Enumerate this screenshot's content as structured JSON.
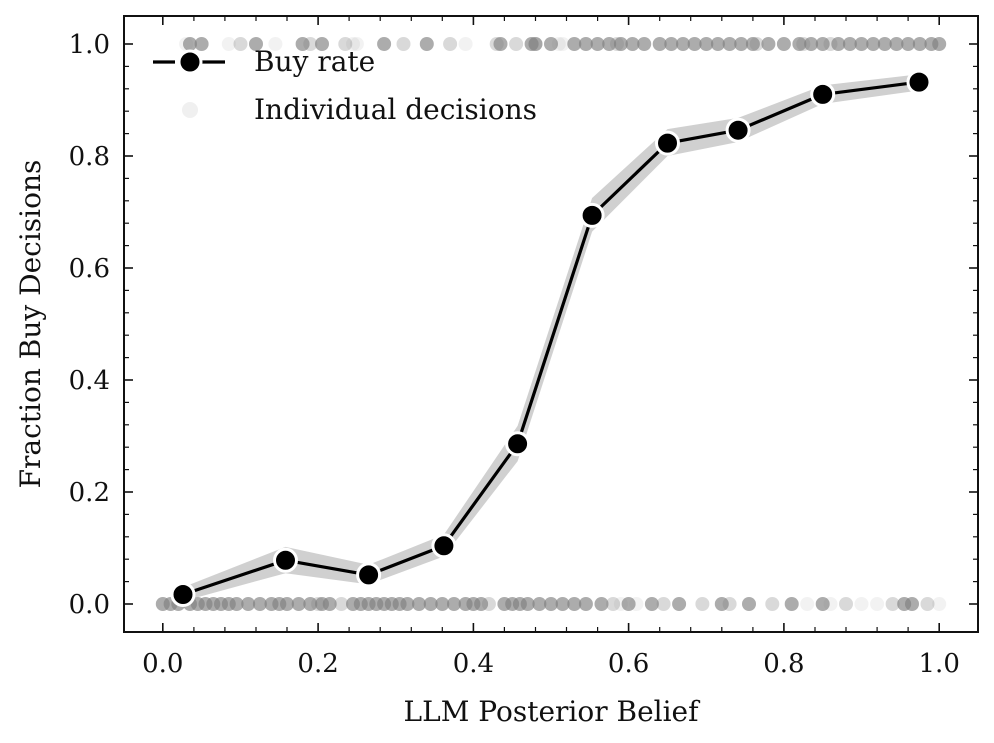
{
  "chart_data": {
    "type": "line",
    "title": "",
    "xlabel": "LLM Posterior Belief",
    "ylabel": "Fraction Buy Decisions",
    "xlim": [
      -0.05,
      1.05
    ],
    "ylim": [
      -0.05,
      1.05
    ],
    "xticks": [
      0.0,
      0.2,
      0.4,
      0.6,
      0.8,
      1.0
    ],
    "xtick_labels": [
      "0.0",
      "0.2",
      "0.4",
      "0.6",
      "0.8",
      "1.0"
    ],
    "yticks": [
      0.0,
      0.2,
      0.4,
      0.6,
      0.8,
      1.0
    ],
    "ytick_labels": [
      "0.0",
      "0.2",
      "0.4",
      "0.6",
      "0.8",
      "1.0"
    ],
    "legend": {
      "position": "upper-left",
      "entries": [
        "Buy rate",
        "Individual decisions"
      ]
    },
    "series": [
      {
        "name": "Buy rate",
        "color": "#000000",
        "x": [
          0.026,
          0.158,
          0.265,
          0.362,
          0.457,
          0.553,
          0.65,
          0.741,
          0.85,
          0.974
        ],
        "y": [
          0.017,
          0.078,
          0.052,
          0.104,
          0.286,
          0.694,
          0.823,
          0.846,
          0.91,
          0.932
        ],
        "ci_lower": [
          0.005,
          0.055,
          0.035,
          0.085,
          0.255,
          0.665,
          0.8,
          0.825,
          0.893,
          0.917
        ],
        "ci_upper": [
          0.03,
          0.102,
          0.07,
          0.124,
          0.318,
          0.725,
          0.848,
          0.868,
          0.926,
          0.946
        ]
      }
    ],
    "scatter": {
      "name": "Individual decisions",
      "color": "#808080",
      "groups": [
        {
          "opacity": 0.65,
          "y": 0.0,
          "x": [
            0.0,
            0.01,
            0.02,
            0.035,
            0.045,
            0.055,
            0.065,
            0.075,
            0.085,
            0.095,
            0.11,
            0.125,
            0.14,
            0.15,
            0.16,
            0.175,
            0.19,
            0.205,
            0.215,
            0.245,
            0.255,
            0.265,
            0.275,
            0.285,
            0.295,
            0.305,
            0.315,
            0.33,
            0.345,
            0.36,
            0.375,
            0.39,
            0.4,
            0.41,
            0.44,
            0.45,
            0.46,
            0.47,
            0.485,
            0.5,
            0.515,
            0.53,
            0.545,
            0.565,
            0.6,
            0.63,
            0.665,
            0.72,
            0.755,
            0.81,
            0.85,
            0.955,
            0.965
          ]
        },
        {
          "opacity": 0.3,
          "y": 0.0,
          "x": [
            0.2,
            0.23,
            0.42,
            0.58,
            0.645,
            0.695,
            0.73,
            0.785,
            0.88,
            0.94,
            0.985
          ]
        },
        {
          "opacity": 0.1,
          "y": 0.0,
          "x": [
            0.59,
            0.61,
            0.83,
            0.86,
            0.9,
            0.92,
            1.0
          ]
        },
        {
          "opacity": 0.65,
          "y": 1.0,
          "x": [
            0.035,
            0.05,
            0.12,
            0.18,
            0.205,
            0.285,
            0.34,
            0.435,
            0.475,
            0.48,
            0.5,
            0.53,
            0.545,
            0.56,
            0.575,
            0.59,
            0.605,
            0.62,
            0.64,
            0.655,
            0.67,
            0.685,
            0.7,
            0.715,
            0.73,
            0.745,
            0.76,
            0.78,
            0.8,
            0.82,
            0.835,
            0.85,
            0.87,
            0.885,
            0.9,
            0.915,
            0.93,
            0.945,
            0.96,
            0.975,
            0.99,
            1.0
          ]
        },
        {
          "opacity": 0.3,
          "y": 1.0,
          "x": [
            0.1,
            0.19,
            0.235,
            0.31,
            0.37,
            0.43,
            0.455,
            0.585,
            0.765,
            0.825,
            0.86
          ]
        },
        {
          "opacity": 0.1,
          "y": 1.0,
          "x": [
            0.03,
            0.085,
            0.145,
            0.245,
            0.25,
            0.39,
            0.48,
            0.51,
            0.515
          ]
        }
      ]
    }
  }
}
